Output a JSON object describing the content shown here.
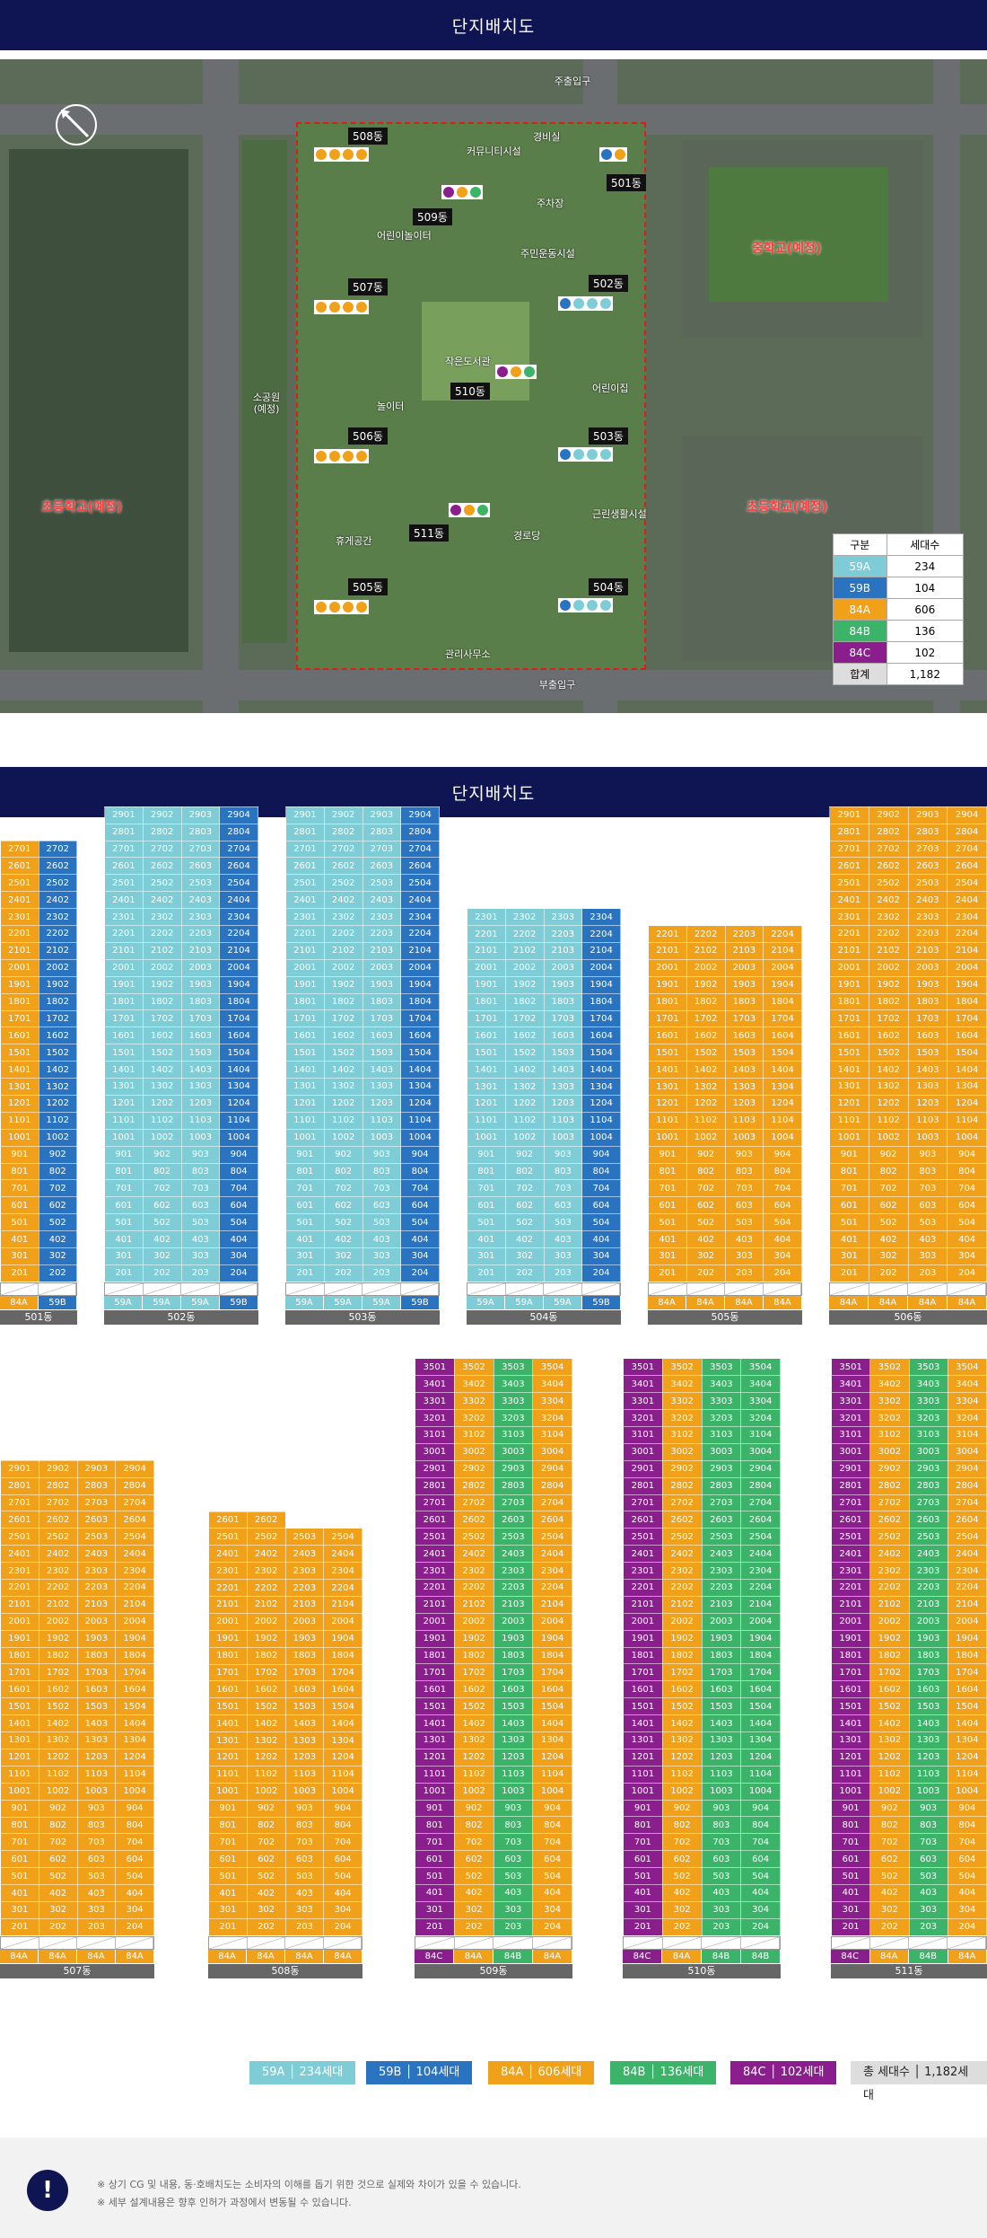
{
  "header": {
    "title_top": "단지배치도",
    "title_bottom": "단지배치도"
  },
  "colors": {
    "59A": "#7ecdd6",
    "59B": "#2a73c0",
    "84A": "#f1a01a",
    "84B": "#3bb368",
    "84C": "#8a1e8c",
    "navy": "#0f1452"
  },
  "sitemap": {
    "gates": {
      "main": "주출입구",
      "sub": "부출입구"
    },
    "schools": {
      "middle": "중학교(예정)",
      "elem_left": "초등학교(예정)",
      "elem_right": "초등학교(예정)"
    },
    "park": "소공원\n(예정)",
    "dongs": [
      "508동",
      "509동",
      "501동",
      "507동",
      "502동",
      "510동",
      "506동",
      "503동",
      "511동",
      "505동",
      "504동"
    ],
    "facilities": [
      "경비실",
      "커뮤니티시설",
      "어린이놀이터",
      "주민운동시설",
      "어린이집",
      "작은도서관",
      "주차장",
      "휴게공간",
      "관리사무소",
      "근린생활시설",
      "경로당",
      "놀이터"
    ],
    "legend_table": {
      "headers": [
        "구분",
        "세대수"
      ],
      "rows": [
        {
          "type": "59A",
          "count": "234"
        },
        {
          "type": "59B",
          "count": "104"
        },
        {
          "type": "84A",
          "count": "606"
        },
        {
          "type": "84B",
          "count": "136"
        },
        {
          "type": "84C",
          "count": "102"
        }
      ],
      "total_label": "합계",
      "total": "1,182"
    }
  },
  "towers": [
    {
      "dong": "501동",
      "top": 27,
      "cols": [
        {
          "line": 1,
          "type": "84A"
        },
        {
          "line": 2,
          "type": "59B"
        }
      ]
    },
    {
      "dong": "502동",
      "top": 29,
      "cols": [
        {
          "line": 1,
          "type": "59A"
        },
        {
          "line": 2,
          "type": "59A"
        },
        {
          "line": 3,
          "type": "59A"
        },
        {
          "line": 4,
          "type": "59B"
        }
      ]
    },
    {
      "dong": "503동",
      "top": 29,
      "cols": [
        {
          "line": 1,
          "type": "59A"
        },
        {
          "line": 2,
          "type": "59A"
        },
        {
          "line": 3,
          "type": "59A"
        },
        {
          "line": 4,
          "type": "59B"
        }
      ]
    },
    {
      "dong": "504동",
      "top": 23,
      "cols": [
        {
          "line": 1,
          "type": "59A"
        },
        {
          "line": 2,
          "type": "59A"
        },
        {
          "line": 3,
          "type": "59A"
        },
        {
          "line": 4,
          "type": "59B"
        }
      ]
    },
    {
      "dong": "505동",
      "top": 22,
      "cols": [
        {
          "line": 1,
          "type": "84A"
        },
        {
          "line": 2,
          "type": "84A"
        },
        {
          "line": 3,
          "type": "84A"
        },
        {
          "line": 4,
          "type": "84A"
        }
      ]
    },
    {
      "dong": "506동",
      "top": 29,
      "cols": [
        {
          "line": 1,
          "type": "84A"
        },
        {
          "line": 2,
          "type": "84A"
        },
        {
          "line": 3,
          "type": "84A"
        },
        {
          "line": 4,
          "type": "84A"
        }
      ]
    },
    {
      "dong": "507동",
      "top": 29,
      "cols": [
        {
          "line": 1,
          "type": "84A"
        },
        {
          "line": 2,
          "type": "84A"
        },
        {
          "line": 3,
          "type": "84A"
        },
        {
          "line": 4,
          "type": "84A"
        }
      ]
    },
    {
      "dong": "508동",
      "top": 26,
      "top_lines": 2,
      "cols": [
        {
          "line": 1,
          "type": "84A"
        },
        {
          "line": 2,
          "type": "84A"
        },
        {
          "line": 3,
          "type": "84A"
        },
        {
          "line": 4,
          "type": "84A"
        }
      ]
    },
    {
      "dong": "509동",
      "top": 35,
      "cols": [
        {
          "line": 1,
          "type": "84C"
        },
        {
          "line": 2,
          "type": "84A"
        },
        {
          "line": 3,
          "type": "84B"
        },
        {
          "line": 4,
          "type": "84A"
        }
      ]
    },
    {
      "dong": "510동",
      "top": 35,
      "cols": [
        {
          "line": 1,
          "type": "84C"
        },
        {
          "line": 2,
          "type": "84A"
        },
        {
          "line": 3,
          "type": "84B"
        },
        {
          "line": 4,
          "type": "84B"
        }
      ]
    },
    {
      "dong": "511동",
      "top": 35,
      "cols": [
        {
          "line": 1,
          "type": "84C"
        },
        {
          "line": 2,
          "type": "84A"
        },
        {
          "line": 3,
          "type": "84B"
        },
        {
          "line": 4,
          "type": "84A"
        }
      ]
    }
  ],
  "bottom_legend": [
    {
      "type": "59A",
      "text": "59A │ 234세대"
    },
    {
      "type": "59B",
      "text": "59B │ 104세대"
    },
    {
      "type": "84A",
      "text": "84A │ 606세대"
    },
    {
      "type": "84B",
      "text": "84B │ 136세대"
    },
    {
      "type": "84C",
      "text": "84C │ 102세대"
    },
    {
      "type": "total",
      "text": "총 세대수 │ 1,182세대"
    }
  ],
  "footnotes": [
    "※ 상기 CG 및 내용, 동·호배치도는 소비자의 이해를 돕기 위한 것으로 실제와 차이가 있을 수 있습니다.",
    "※ 세부 설계내용은 향후 인허가 과정에서 변동될 수 있습니다."
  ],
  "footer_icon": "!"
}
